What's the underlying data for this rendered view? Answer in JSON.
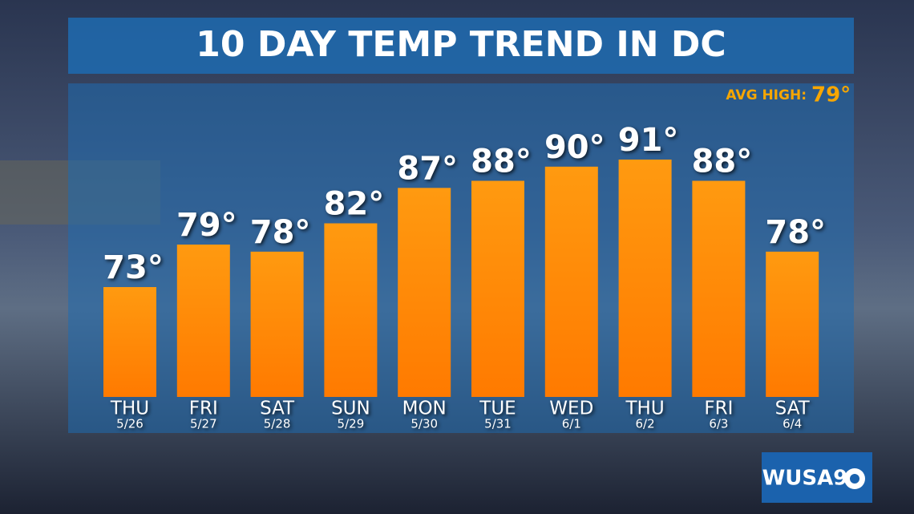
{
  "chart_data": {
    "type": "bar",
    "title": "10 DAY TEMP TREND IN DC",
    "annotation_label": "AVG HIGH:",
    "annotation_value": "79°",
    "categories": [
      "THU",
      "FRI",
      "SAT",
      "SUN",
      "MON",
      "TUE",
      "WED",
      "THU",
      "FRI",
      "SAT"
    ],
    "dates": [
      "5/26",
      "5/27",
      "5/28",
      "5/29",
      "5/30",
      "5/31",
      "6/1",
      "6/2",
      "6/3",
      "6/4"
    ],
    "values": [
      73,
      79,
      78,
      82,
      87,
      88,
      90,
      91,
      88,
      78
    ],
    "value_labels": [
      "73°",
      "79°",
      "78°",
      "82°",
      "87°",
      "88°",
      "90°",
      "91°",
      "88°",
      "78°"
    ],
    "color": "#ff8a00"
  },
  "logo": "WUSA9"
}
